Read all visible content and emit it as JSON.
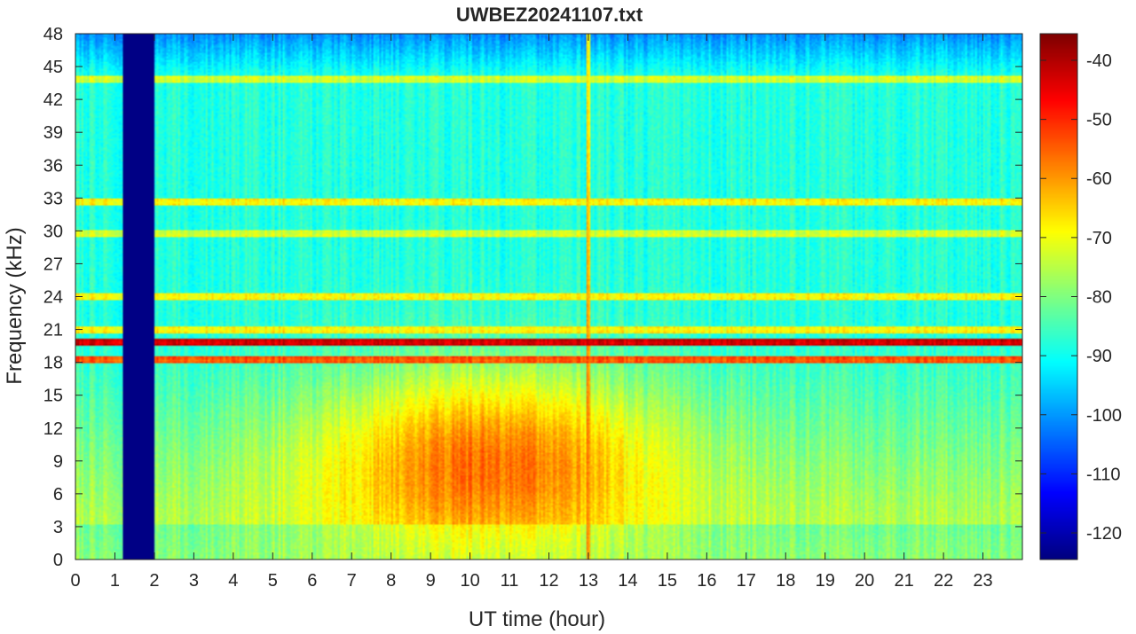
{
  "chart_data": {
    "type": "heatmap",
    "title": "UWBEZ20241107.txt",
    "xlabel": "UT time (hour)",
    "ylabel": "Frequency (kHz)",
    "xlim": [
      0,
      24
    ],
    "ylim": [
      0,
      48
    ],
    "x_ticks": [
      0,
      1,
      2,
      3,
      4,
      5,
      6,
      7,
      8,
      9,
      10,
      11,
      12,
      13,
      14,
      15,
      16,
      17,
      18,
      19,
      20,
      21,
      22,
      23
    ],
    "y_ticks": [
      0,
      3,
      6,
      9,
      12,
      15,
      18,
      21,
      24,
      27,
      30,
      33,
      36,
      39,
      42,
      45,
      48
    ],
    "colorbar": {
      "colormap": "jet",
      "clim": [
        -124.5,
        -35.5
      ],
      "ticks": [
        -40,
        -50,
        -60,
        -70,
        -80,
        -90,
        -100,
        -110,
        -120
      ]
    },
    "features": {
      "background_level_dB": -88,
      "data_gap_hours": [
        1.2,
        2.0
      ],
      "data_gap_level_dB": -124,
      "broadband_burst_hour": 13.0,
      "broadband_burst_level_dB": -58,
      "daytime_noise_peak_hour": 10.5,
      "daytime_noise_peak_level_dB": -60,
      "daytime_noise_band_kHz": [
        3,
        16
      ],
      "transmitter_lines": [
        {
          "freq_kHz": 19.8,
          "level_dB": -44
        },
        {
          "freq_kHz": 18.2,
          "level_dB": -55
        },
        {
          "freq_kHz": 24.0,
          "level_dB": -70
        },
        {
          "freq_kHz": 21.0,
          "level_dB": -70
        },
        {
          "freq_kHz": 32.6,
          "level_dB": -70
        },
        {
          "freq_kHz": 43.8,
          "level_dB": -74
        },
        {
          "freq_kHz": 29.8,
          "level_dB": -74
        }
      ]
    }
  }
}
